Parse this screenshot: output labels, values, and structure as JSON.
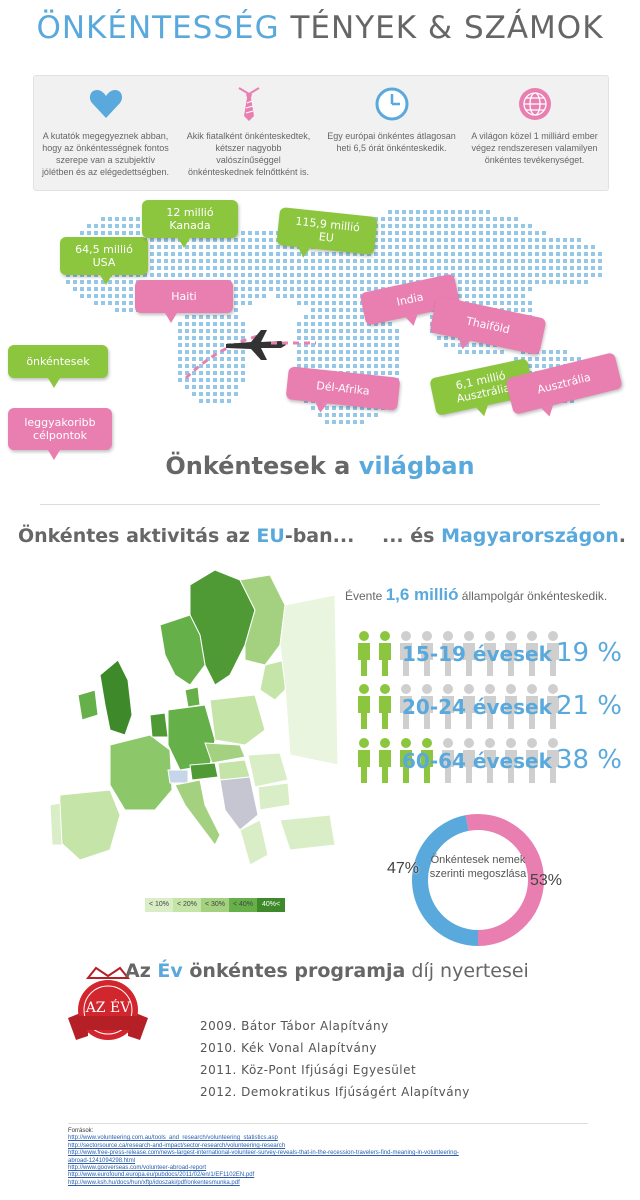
{
  "title": {
    "part1": "ÖNKÉNTESSÉG",
    "part2": " TÉNYEK & SZÁMOK"
  },
  "facts": [
    {
      "icon": "heart-icon",
      "text": "A kutatók megegyeznek abban, hogy az önkéntességnek fontos szerepe van a szubjektív jólétben és az elégedettségben."
    },
    {
      "icon": "tie-icon",
      "text": "Akik fiatalként önkénteskedtek, kétszer nagyobb valószínűséggel önkénteskednek felnőttként is."
    },
    {
      "icon": "clock-icon",
      "text": "Egy európai önkéntes átlagosan heti 6,5 órát önkénteskedik."
    },
    {
      "icon": "globe-icon",
      "text": "A világon közel 1 milliárd ember végez rendszeresen valamilyen önkéntes tevékenységet."
    }
  ],
  "map": {
    "bubbles_green": [
      {
        "id": "usa",
        "line1": "64,5 millió",
        "line2": "USA"
      },
      {
        "id": "canada",
        "line1": "12 millió",
        "line2": "Kanada"
      },
      {
        "id": "eu",
        "line1": "115,9 millió",
        "line2": "EU"
      },
      {
        "id": "australia-num",
        "line1": "6,1 millió",
        "line2": "Ausztrália"
      }
    ],
    "bubbles_pink": [
      {
        "id": "haiti",
        "text": "Haiti"
      },
      {
        "id": "india",
        "text": "India"
      },
      {
        "id": "thailand",
        "text": "Thaiföld"
      },
      {
        "id": "south-africa",
        "text": "Dél-Afrika"
      },
      {
        "id": "australia",
        "text": "Ausztrália"
      }
    ],
    "legend_green": "önkéntesek",
    "legend_pink": "leggyakoribb célpontok",
    "title_dark": "Önkéntesek a ",
    "title_blue": "világban"
  },
  "eu": {
    "head_dark1": "Önkéntes aktivitás az ",
    "head_blue": "EU",
    "head_dark2": "-ban...",
    "legend": [
      "< 10%",
      "< 20%",
      "< 30%",
      "< 40%",
      "40%<"
    ]
  },
  "hungary": {
    "head_dark": "... és ",
    "head_blue": "Magyarországon",
    "head_end": ".",
    "annual_pre": "Évente ",
    "annual_big": "1,6 millió",
    "annual_post": " állampolgár önkénteskedik.",
    "age_groups": [
      {
        "label": "15-19 évesek",
        "percent": "19 %",
        "value": 19
      },
      {
        "label": "20-24 évesek",
        "percent": "21 %",
        "value": 21
      },
      {
        "label": "60-64 évesek",
        "percent": "38 %",
        "value": 38
      }
    ],
    "gender_label": "Önkéntesek nemek szerinti megoszlása",
    "gender_left": "47%",
    "gender_right": "53%"
  },
  "chart_data": {
    "type": "pie",
    "title": "Önkéntesek nemek szerinti megoszlása",
    "categories": [
      "kék",
      "rózsaszín"
    ],
    "values": [
      47,
      53
    ]
  },
  "award": {
    "title_dark1": "Az ",
    "title_blue": "Év",
    "title_dark2": " önkéntes programja",
    "title_dark3": " díj nyertesei",
    "badge_text": "AZ ÉV",
    "winners": [
      "2009. Bátor Tábor Alapítvány",
      "2010. Kék Vonal Alapítvány",
      "2011. Köz-Pont Ifjúsági Egyesület",
      "2012. Demokratikus Ifjúságért Alapítvány"
    ]
  },
  "sources": {
    "label": "Források:",
    "links": [
      "http://www.volunteering.com.au/tools_and_research/volunteering_statistics.asp",
      "http://sectorsource.ca/research-and-impact/sector-research/volunteering-research",
      "http://www.free-press-release.com/news-largest-international-volunteer-survey-reveals-that-in-the-recession-travelers-find-meaning-in-volunteering-",
      "abroad-1241094298.html",
      "http://www.gooverseas.com/volunteer-abroad-report",
      "http://www.eurofound.europa.eu/pubdocs/2011/02/en/1/EF1102EN.pdf",
      "http://www.ksh.hu/docs/hun/xftp/idoszaki/pdf/onkentesmunka.pdf"
    ]
  },
  "colors": {
    "blue": "#5aa9dc",
    "green": "#8cc63f",
    "pink": "#e97fb0",
    "grey": "#666666"
  }
}
